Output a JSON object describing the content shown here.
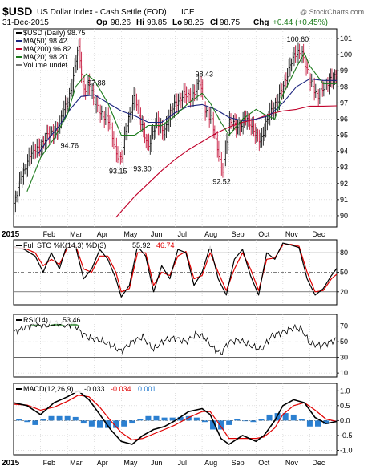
{
  "header": {
    "symbol": "$USD",
    "name": "US Dollar Index - Cash Settle (EOD)",
    "exchange": "ICE",
    "watermark": "@ StockCharts.com",
    "date": "31-Dec-2015",
    "op_label": "Op",
    "op": "98.26",
    "hi_label": "Hi",
    "hi": "98.85",
    "lo_label": "Lo",
    "lo": "98.25",
    "cl_label": "Cl",
    "cl": "98.75",
    "chg_label": "Chg",
    "chg": "+0.44 (+0.45%)"
  },
  "colors": {
    "price": "#000000",
    "ma50": "#1a237e",
    "ma200": "#c0002a",
    "ma20": "#1b7a1b",
    "up_bar": "#000000",
    "down_bar": "#c0002a",
    "macd": "#000000",
    "signal": "#e00000",
    "histogram": "#2b7fd0",
    "rsi_fill": "#5a9e5a",
    "grid": "#cccccc"
  },
  "chart_data": [
    {
      "type": "line",
      "panel": "price",
      "legend_items": [
        {
          "key": "price",
          "label": "$USD (Daily) 98.75"
        },
        {
          "key": "ma50",
          "label": "MA(50) 98.42"
        },
        {
          "key": "ma200",
          "label": "MA(200) 96.82"
        },
        {
          "key": "ma20",
          "label": "MA(20) 98.20"
        },
        {
          "key": "volume",
          "label": "Volume undef"
        }
      ],
      "y_ticks": [
        90,
        91,
        92,
        93,
        94,
        95,
        96,
        97,
        98,
        99,
        100,
        101
      ],
      "ylim": [
        89.3,
        101.6
      ],
      "xlim": [
        0,
        12
      ],
      "x_ticks": [
        {
          "x": 0,
          "label": "2015"
        },
        {
          "x": 1,
          "label": "Feb"
        },
        {
          "x": 2,
          "label": "Mar"
        },
        {
          "x": 3,
          "label": "Apr"
        },
        {
          "x": 4,
          "label": "May"
        },
        {
          "x": 5,
          "label": "Jun"
        },
        {
          "x": 6,
          "label": "Jul"
        },
        {
          "x": 7,
          "label": "Aug"
        },
        {
          "x": 8,
          "label": "Sep"
        },
        {
          "x": 9,
          "label": "Oct"
        },
        {
          "x": 10,
          "label": "Nov"
        },
        {
          "x": 11,
          "label": "Dec"
        }
      ],
      "price": {
        "x": [
          0,
          0.3,
          0.6,
          1.0,
          1.3,
          1.6,
          2.0,
          2.2,
          2.4,
          2.6,
          2.8,
          3.0,
          3.2,
          3.5,
          3.8,
          4.0,
          4.2,
          4.5,
          4.7,
          5.0,
          5.3,
          5.6,
          6.0,
          6.3,
          6.6,
          6.9,
          7.1,
          7.35,
          7.55,
          7.75,
          8.0,
          8.3,
          8.6,
          9.0,
          9.2,
          9.5,
          9.8,
          10.1,
          10.3,
          10.5,
          10.7,
          11.0,
          11.3,
          11.6,
          11.8,
          12.0
        ],
        "y": [
          90.5,
          92.5,
          93.7,
          94.4,
          95.0,
          95.3,
          97.0,
          98.5,
          100.5,
          97.8,
          98.3,
          97.0,
          96.5,
          96.0,
          94.0,
          93.5,
          95.5,
          97.6,
          95.8,
          94.4,
          95.7,
          95.3,
          97.0,
          97.5,
          97.3,
          98.4,
          96.5,
          96.2,
          94.2,
          92.7,
          95.8,
          95.5,
          96.0,
          95.2,
          94.5,
          96.5,
          97.0,
          98.5,
          99.5,
          100.0,
          100.3,
          98.3,
          97.5,
          98.0,
          98.6,
          98.75
        ]
      },
      "ma50": {
        "x": [
          0.9,
          1.3,
          1.7,
          2.1,
          2.5,
          3.0,
          3.5,
          4.0,
          4.5,
          5.0,
          5.5,
          6.0,
          6.5,
          7.0,
          7.5,
          8.0,
          8.5,
          9.0,
          9.5,
          10.0,
          10.5,
          11.0,
          11.5,
          12.0
        ],
        "y": [
          93.8,
          94.8,
          95.6,
          96.6,
          97.4,
          97.5,
          97.0,
          96.5,
          96.2,
          95.8,
          95.8,
          96.4,
          96.8,
          96.9,
          96.6,
          96.1,
          95.9,
          96.0,
          96.2,
          97.0,
          98.0,
          98.5,
          98.4,
          98.4
        ]
      },
      "ma200": {
        "x": [
          3.8,
          4.5,
          5.0,
          5.5,
          6.0,
          6.5,
          7.0,
          7.5,
          8.0,
          8.5,
          9.0,
          9.5,
          10.0,
          10.5,
          11.0,
          11.5,
          12.0
        ],
        "y": [
          89.9,
          91.2,
          92.0,
          92.8,
          93.5,
          94.1,
          94.6,
          95.1,
          95.5,
          95.8,
          96.0,
          96.3,
          96.5,
          96.6,
          96.8,
          96.8,
          96.82
        ]
      },
      "ma20": {
        "x": [
          0.5,
          1.0,
          1.5,
          2.0,
          2.3,
          2.7,
          3.0,
          3.5,
          4.0,
          4.5,
          5.0,
          5.5,
          6.0,
          6.5,
          7.0,
          7.3,
          7.7,
          8.0,
          8.5,
          9.0,
          9.3,
          9.7,
          10.0,
          10.5,
          10.8,
          11.0,
          11.5,
          12.0
        ],
        "y": [
          91.5,
          93.6,
          94.8,
          96.3,
          98.0,
          98.8,
          98.4,
          97.0,
          95.0,
          95.0,
          95.6,
          95.6,
          96.2,
          97.0,
          97.6,
          97.0,
          95.8,
          95.0,
          96.0,
          96.6,
          96.3,
          96.0,
          97.5,
          99.2,
          100.1,
          99.3,
          98.2,
          98.2
        ]
      },
      "annotations": [
        {
          "x": 10.5,
          "y": 100.6,
          "label": "100.60",
          "pos": "above"
        },
        {
          "x": 2.1,
          "y": 94.76,
          "label": "94.76",
          "pos": "below"
        },
        {
          "x": 3.1,
          "y": 97.88,
          "label": "97.88",
          "pos": "above"
        },
        {
          "x": 3.9,
          "y": 93.15,
          "label": "93.15",
          "pos": "below"
        },
        {
          "x": 4.8,
          "y": 93.3,
          "label": "93.30",
          "pos": "below"
        },
        {
          "x": 7.1,
          "y": 98.43,
          "label": "98.43",
          "pos": "above"
        },
        {
          "x": 7.75,
          "y": 92.52,
          "label": "92.52",
          "pos": "below"
        }
      ]
    },
    {
      "type": "line",
      "panel": "stochastic",
      "legend_label": "Full STO %K(14,3) %D(3)",
      "k_value": "55.92",
      "d_value": "46.74",
      "ylim": [
        0,
        100
      ],
      "y_ticks": [
        20,
        50,
        80
      ],
      "k": {
        "x": [
          0,
          0.4,
          0.8,
          1.1,
          1.4,
          1.7,
          2.0,
          2.3,
          2.6,
          2.9,
          3.2,
          3.5,
          3.8,
          4.0,
          4.3,
          4.6,
          4.9,
          5.2,
          5.5,
          5.8,
          6.1,
          6.4,
          6.7,
          7.0,
          7.3,
          7.6,
          7.9,
          8.2,
          8.5,
          8.8,
          9.1,
          9.4,
          9.7,
          10.0,
          10.3,
          10.6,
          10.9,
          11.2,
          11.5,
          11.8,
          12.0
        ],
        "y": [
          90,
          85,
          75,
          50,
          80,
          55,
          95,
          90,
          40,
          55,
          85,
          70,
          40,
          12,
          30,
          90,
          75,
          20,
          60,
          40,
          85,
          80,
          30,
          50,
          90,
          40,
          15,
          70,
          85,
          45,
          15,
          80,
          70,
          95,
          92,
          88,
          40,
          15,
          25,
          45,
          56
        ]
      },
      "d": {
        "x": [
          0,
          0.4,
          0.8,
          1.1,
          1.4,
          1.7,
          2.0,
          2.3,
          2.6,
          2.9,
          3.2,
          3.5,
          3.8,
          4.0,
          4.3,
          4.6,
          4.9,
          5.2,
          5.5,
          5.8,
          6.1,
          6.4,
          6.7,
          7.0,
          7.3,
          7.6,
          7.9,
          8.2,
          8.5,
          8.8,
          9.1,
          9.4,
          9.7,
          10.0,
          10.3,
          10.6,
          10.9,
          11.2,
          11.5,
          11.8,
          12.0
        ],
        "y": [
          88,
          87,
          80,
          60,
          70,
          62,
          88,
          92,
          55,
          50,
          75,
          75,
          50,
          20,
          25,
          80,
          80,
          30,
          50,
          45,
          75,
          82,
          40,
          45,
          80,
          50,
          22,
          55,
          80,
          55,
          22,
          70,
          72,
          92,
          93,
          90,
          50,
          20,
          22,
          40,
          47
        ]
      }
    },
    {
      "type": "area",
      "panel": "rsi",
      "legend_label": "RSI(14)",
      "value": "53.46",
      "ylim": [
        5,
        85
      ],
      "y_ticks": [
        10,
        30,
        50,
        70
      ],
      "rsi": {
        "x": [
          0,
          0.4,
          0.8,
          1.2,
          1.6,
          2.0,
          2.2,
          2.5,
          2.8,
          3.2,
          3.6,
          4.0,
          4.4,
          4.8,
          5.2,
          5.6,
          6.0,
          6.4,
          6.8,
          7.1,
          7.4,
          7.7,
          8.0,
          8.4,
          8.8,
          9.2,
          9.6,
          10.0,
          10.4,
          10.7,
          11.0,
          11.4,
          11.8,
          12.0
        ],
        "y": [
          62,
          68,
          72,
          70,
          74,
          70,
          75,
          62,
          55,
          52,
          46,
          38,
          50,
          56,
          40,
          52,
          55,
          50,
          60,
          55,
          42,
          35,
          50,
          52,
          45,
          40,
          58,
          62,
          68,
          66,
          48,
          45,
          50,
          53.5
        ]
      }
    },
    {
      "type": "line",
      "panel": "macd",
      "legend_label": "MACD(12,26,9)",
      "macd_value": "-0.033",
      "signal_value": "-0.034",
      "hist_value": "0.001",
      "ylim": [
        -1.15,
        1.25
      ],
      "y_ticks": [
        -1.0,
        -0.5,
        0.0,
        0.5,
        1.0
      ],
      "macd": {
        "x": [
          0,
          0.5,
          1.0,
          1.5,
          2.0,
          2.4,
          2.8,
          3.2,
          3.6,
          4.0,
          4.4,
          4.8,
          5.2,
          5.6,
          6.0,
          6.5,
          7.0,
          7.3,
          7.7,
          8.0,
          8.5,
          9.0,
          9.3,
          9.7,
          10.0,
          10.4,
          10.8,
          11.2,
          11.6,
          12.0
        ],
        "y": [
          0.6,
          0.5,
          0.2,
          0.6,
          0.8,
          1.0,
          0.7,
          0.2,
          -0.3,
          -0.7,
          -0.8,
          -0.5,
          -0.3,
          -0.2,
          0.0,
          0.3,
          0.4,
          0.2,
          -0.6,
          -0.8,
          -0.5,
          -0.7,
          -0.5,
          0.0,
          0.5,
          0.7,
          0.6,
          0.1,
          -0.1,
          -0.03
        ]
      },
      "signal": {
        "x": [
          0,
          0.5,
          1.0,
          1.5,
          2.0,
          2.4,
          2.8,
          3.2,
          3.6,
          4.0,
          4.4,
          4.8,
          5.2,
          5.6,
          6.0,
          6.5,
          7.0,
          7.3,
          7.7,
          8.0,
          8.5,
          9.0,
          9.3,
          9.7,
          10.0,
          10.4,
          10.8,
          11.2,
          11.6,
          12.0
        ],
        "y": [
          0.55,
          0.52,
          0.35,
          0.45,
          0.65,
          0.85,
          0.8,
          0.45,
          0.0,
          -0.4,
          -0.65,
          -0.6,
          -0.45,
          -0.3,
          -0.15,
          0.1,
          0.3,
          0.3,
          -0.2,
          -0.6,
          -0.6,
          -0.6,
          -0.55,
          -0.25,
          0.2,
          0.5,
          0.6,
          0.35,
          0.05,
          -0.03
        ]
      },
      "histogram": {
        "x": [
          0.2,
          0.5,
          0.8,
          1.1,
          1.4,
          1.7,
          2.0,
          2.3,
          2.6,
          2.9,
          3.2,
          3.5,
          3.8,
          4.1,
          4.4,
          4.7,
          5.0,
          5.3,
          5.6,
          5.9,
          6.2,
          6.5,
          6.8,
          7.1,
          7.4,
          7.7,
          8.0,
          8.3,
          8.6,
          8.9,
          9.2,
          9.5,
          9.8,
          10.1,
          10.4,
          10.7,
          11.0,
          11.3,
          11.6,
          11.9
        ],
        "y": [
          0.05,
          -0.05,
          -0.15,
          0.05,
          0.15,
          0.15,
          0.15,
          0.12,
          -0.1,
          -0.2,
          -0.25,
          -0.25,
          -0.25,
          -0.2,
          -0.1,
          0.05,
          0.15,
          0.15,
          0.1,
          0.1,
          0.12,
          0.15,
          0.1,
          -0.05,
          -0.3,
          -0.3,
          -0.15,
          0.05,
          0.0,
          -0.05,
          0.05,
          0.2,
          0.25,
          0.25,
          0.2,
          0.05,
          -0.2,
          -0.2,
          -0.12,
          0.0
        ]
      }
    }
  ]
}
